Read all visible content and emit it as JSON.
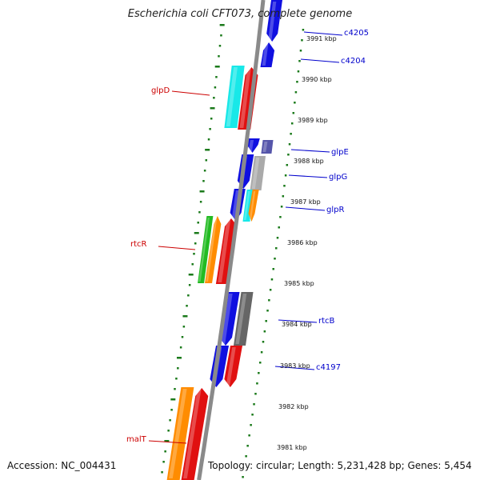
{
  "title": "Escherichia coli CFT073, complete genome",
  "footer": {
    "accession": "Accession: NC_004431",
    "topology": "Topology: circular; Length: 5,231,428 bp; Genes: 5,454"
  },
  "ticks": [
    "3991 kbp",
    "3990 kbp",
    "3989 kbp",
    "3988 kbp",
    "3987 kbp",
    "3986 kbp",
    "3985 kbp",
    "3984 kbp",
    "3983 kbp",
    "3982 kbp",
    "3981 kbp"
  ],
  "gene_labels": [
    {
      "text": "c4205",
      "side": "right"
    },
    {
      "text": "c4204",
      "side": "right"
    },
    {
      "text": "glpD",
      "side": "left"
    },
    {
      "text": "glpE",
      "side": "right"
    },
    {
      "text": "glpG",
      "side": "right"
    },
    {
      "text": "glpR",
      "side": "right"
    },
    {
      "text": "rtcR",
      "side": "left"
    },
    {
      "text": "rtcB",
      "side": "right"
    },
    {
      "text": "c4197",
      "side": "right"
    },
    {
      "text": "malT",
      "side": "left"
    }
  ],
  "colors": {
    "backbone": "#8a8a8a",
    "dots": "#1b7a1b",
    "forward_label": "#cc0000",
    "reverse_label": "#0000cc",
    "blue": "#1010e0",
    "red": "#e01010",
    "cyan": "#18e8e8",
    "orange": "#ff8c00",
    "green": "#22bb22",
    "gray": "#aaaaaa",
    "darkgray": "#666666",
    "purple": "#5555aa"
  }
}
